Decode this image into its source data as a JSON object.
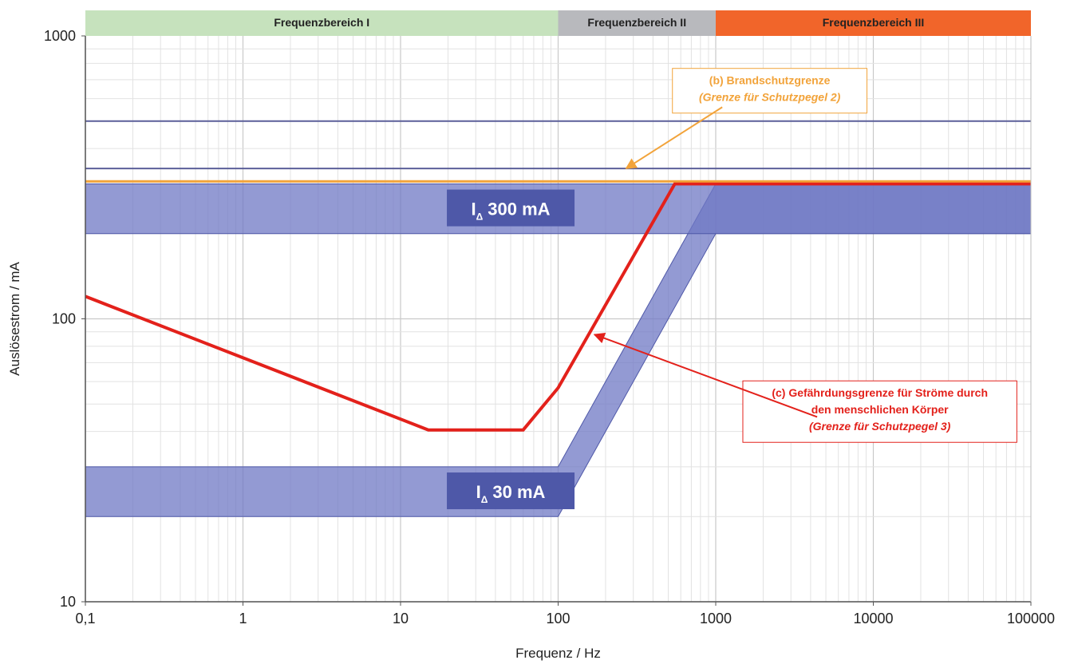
{
  "chart_data": {
    "type": "line",
    "title": "",
    "xlabel": "Frequenz / Hz",
    "ylabel": "Auslösestrom / mA",
    "xscale": "log",
    "yscale": "log",
    "xlim": [
      0.1,
      100000
    ],
    "ylim": [
      10,
      1000
    ],
    "x_ticks": [
      {
        "value": 0.1,
        "label": "0,1"
      },
      {
        "value": 1,
        "label": "1"
      },
      {
        "value": 10,
        "label": "10"
      },
      {
        "value": 100,
        "label": "100"
      },
      {
        "value": 1000,
        "label": "1000"
      },
      {
        "value": 10000,
        "label": "10000"
      },
      {
        "value": 100000,
        "label": "100000"
      }
    ],
    "y_ticks": [
      {
        "value": 10,
        "label": "10"
      },
      {
        "value": 100,
        "label": "100"
      },
      {
        "value": 1000,
        "label": "1000"
      }
    ],
    "grid": true,
    "frequency_ranges": [
      {
        "label": "Frequenzbereich I",
        "from": 0.1,
        "to": 100,
        "color": "#c6e2bd"
      },
      {
        "label": "Frequenzbereich II",
        "from": 100,
        "to": 1000,
        "color": "#b8b9bd"
      },
      {
        "label": "Frequenzbereich III",
        "from": 1000,
        "to": 100000,
        "color": "#f1652a"
      }
    ],
    "bands": [
      {
        "label_main": "I",
        "label_sub": "Δ",
        "label_value": "30 mA",
        "color": "#6f78c4",
        "upper": [
          [
            0.1,
            30
          ],
          [
            100,
            30
          ],
          [
            1000,
            300
          ],
          [
            100000,
            300
          ]
        ],
        "lower": [
          [
            0.1,
            20
          ],
          [
            100,
            20
          ],
          [
            1000,
            200
          ],
          [
            100000,
            200
          ]
        ],
        "label_x": 50,
        "label_y": 24.5
      },
      {
        "label_main": "I",
        "label_sub": "Δ",
        "label_value": "300 mA",
        "color": "#6f78c4",
        "upper": [
          [
            0.1,
            300
          ],
          [
            100000,
            300
          ]
        ],
        "lower": [
          [
            0.1,
            200
          ],
          [
            100000,
            200
          ]
        ],
        "label_x": 50,
        "label_y": 245
      }
    ],
    "series": [
      {
        "key": "c",
        "color": "#e3211b",
        "points": [
          [
            0.1,
            120
          ],
          [
            15,
            40.5
          ],
          [
            60,
            40.5
          ],
          [
            100,
            57
          ],
          [
            550,
            300
          ],
          [
            100000,
            300
          ]
        ]
      },
      {
        "key": "b",
        "color": "#f2a33a",
        "points": [
          [
            0.1,
            306
          ],
          [
            100000,
            306
          ]
        ]
      },
      {
        "key": "ref1",
        "color": "#5b5f99",
        "points": [
          [
            0.1,
            500
          ],
          [
            100000,
            500
          ]
        ]
      },
      {
        "key": "ref2",
        "color": "#5b5f99",
        "points": [
          [
            0.1,
            340
          ],
          [
            100000,
            340
          ]
        ]
      }
    ],
    "annotations": [
      {
        "key": "b",
        "lines": [
          {
            "text": "(b) Brandschutzgrenze",
            "italic": false
          },
          {
            "text": "(Grenze für Schutzpegel 2)",
            "italic": true
          }
        ],
        "color": "#f2a33a",
        "border": "#f2a33a",
        "box_center": [
          2200,
          640
        ],
        "arrow_from": [
          1100,
          560
        ],
        "arrow_to": [
          270,
          340
        ]
      },
      {
        "key": "c",
        "lines": [
          {
            "text": "(c) Gefährdungsgrenze für Ströme durch",
            "italic": false
          },
          {
            "text": "den menschlichen Körper",
            "italic": false
          },
          {
            "text": "(Grenze für Schutzpegel 3)",
            "italic": true
          }
        ],
        "color": "#e3211b",
        "border": "#e3211b",
        "box_center": [
          11000,
          47
        ],
        "arrow_from": [
          4400,
          45
        ],
        "arrow_to": [
          170,
          88
        ]
      }
    ]
  }
}
